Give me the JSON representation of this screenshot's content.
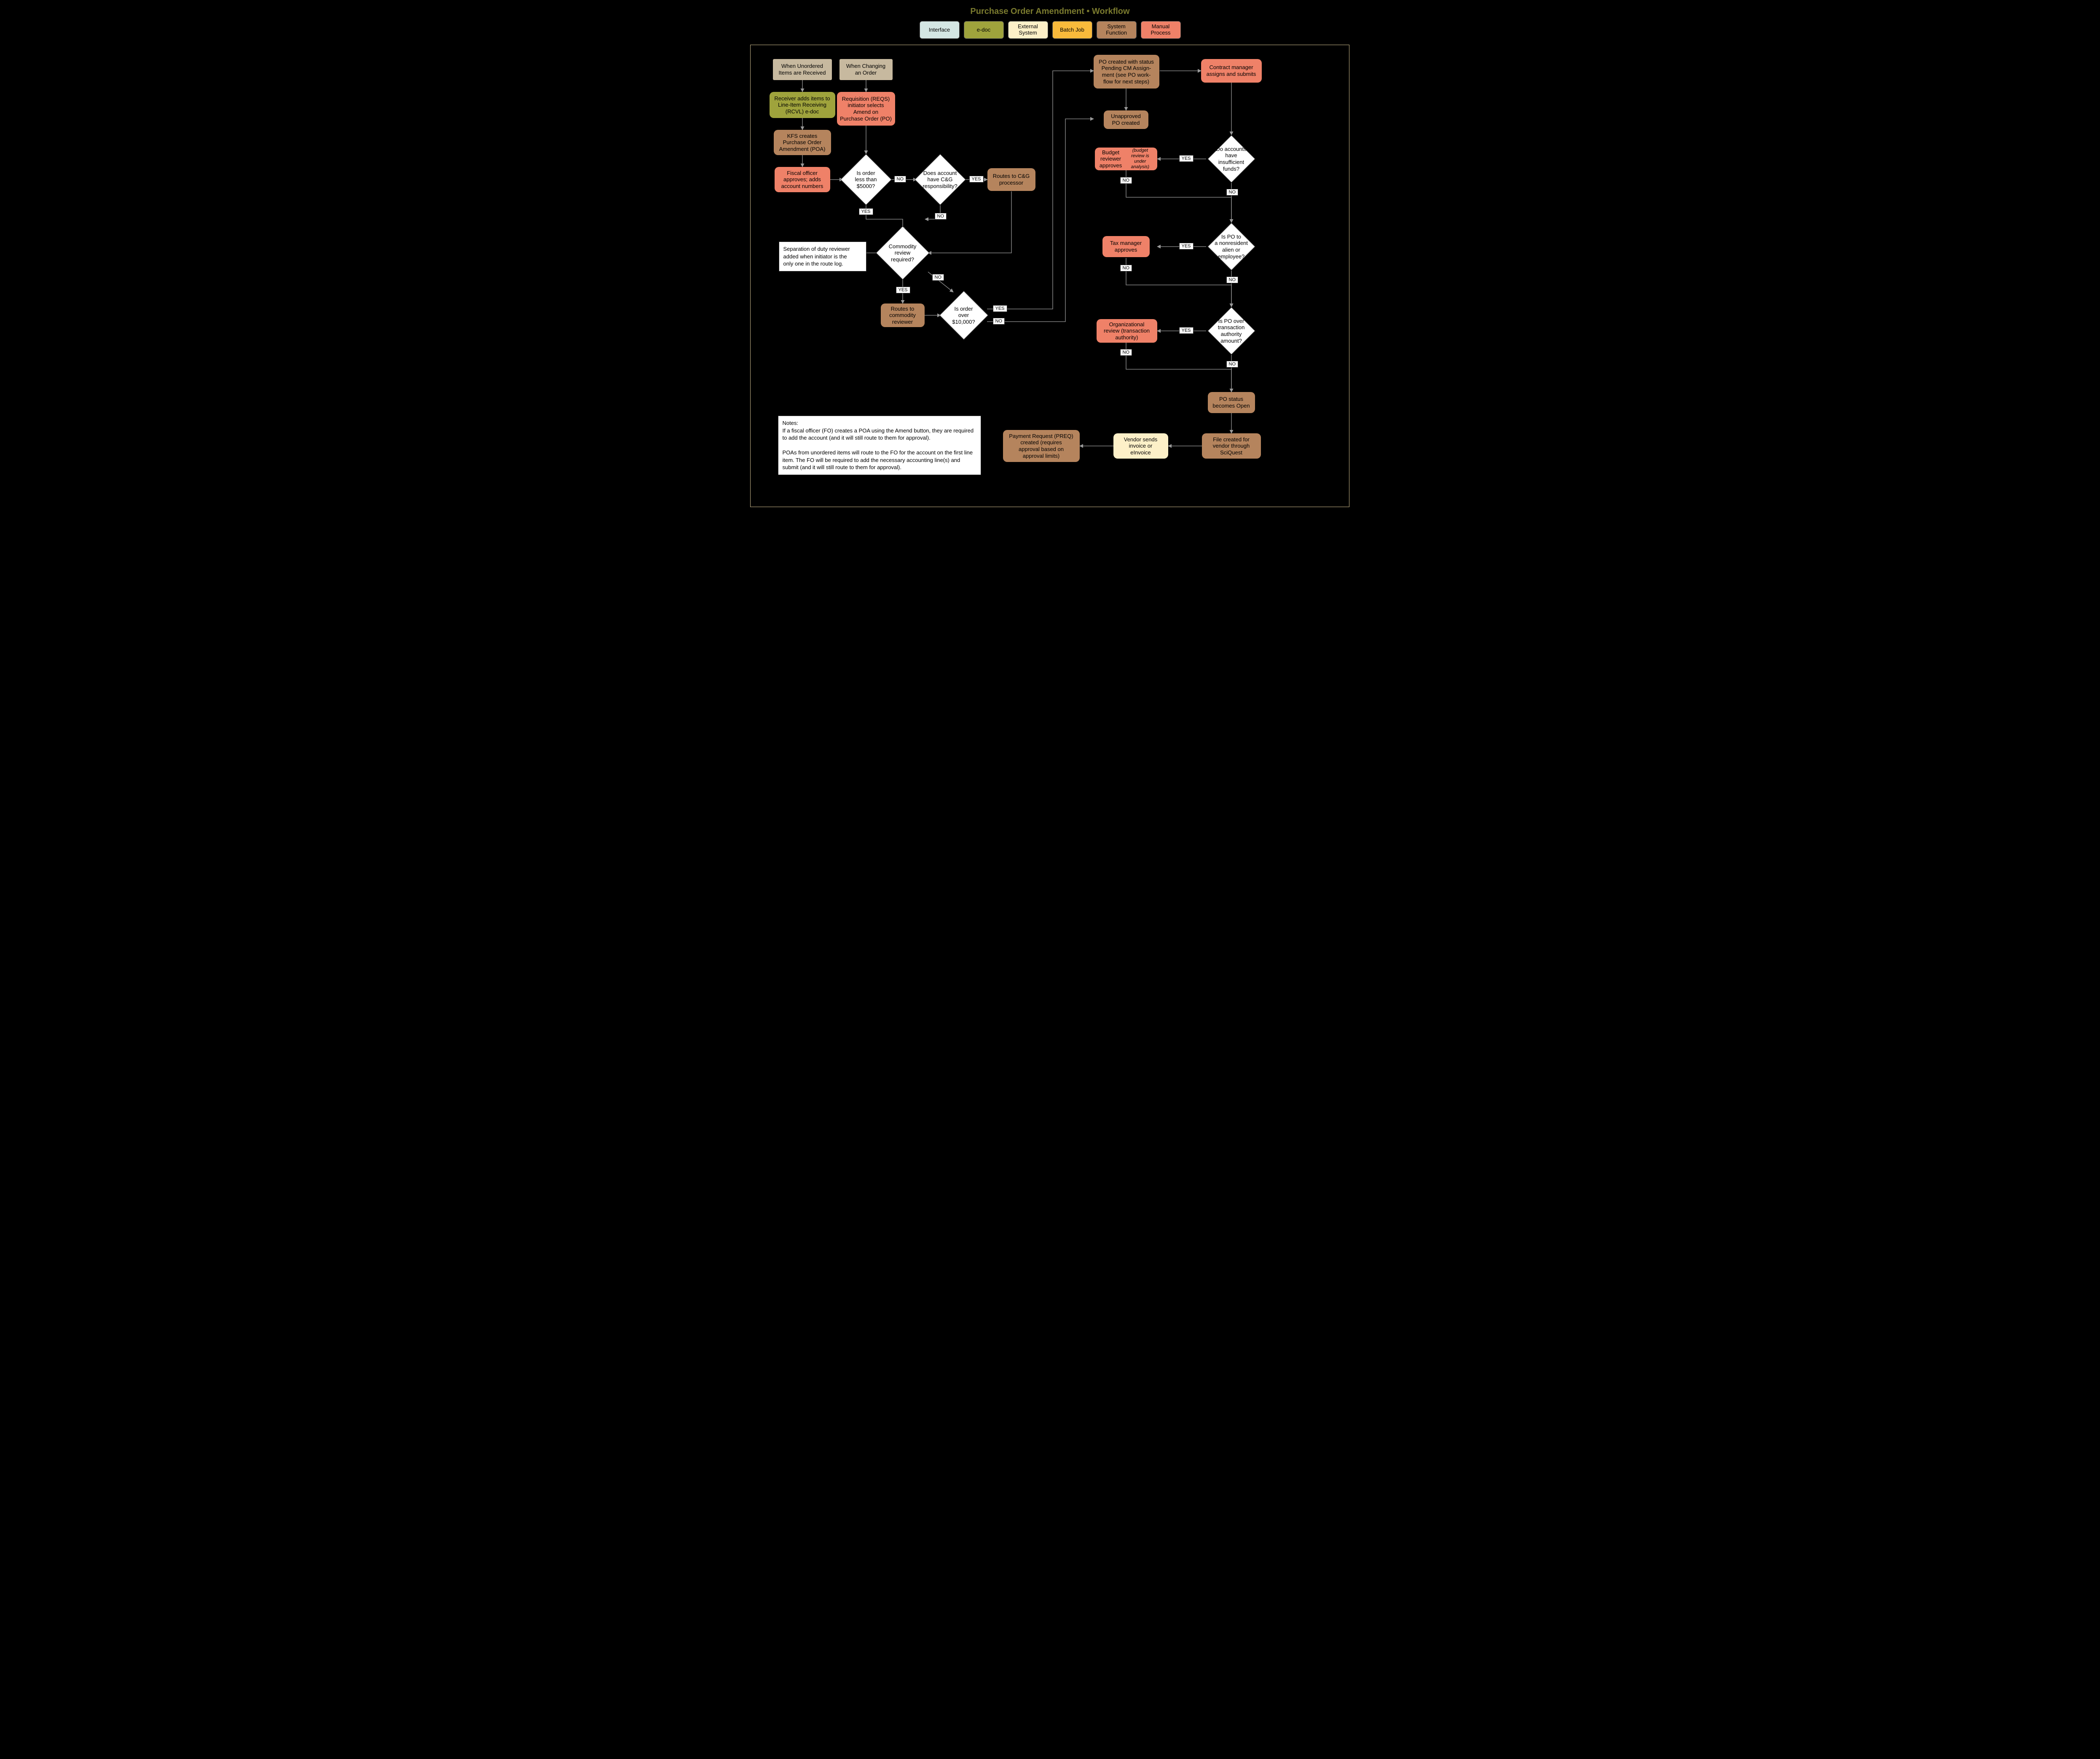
{
  "title": "Purchase Order Amendment • Workflow",
  "colors": {
    "interface": "#d4e6e3",
    "edoc": "#9fa33c",
    "external": "#fdf0c8",
    "batch": "#f9ba3b",
    "sysfunc": "#b5845d",
    "manual": "#ef8168",
    "startEnd": "#c7b99f",
    "white": "#ffffff",
    "titleColor": "#7a7a2e"
  },
  "legend": [
    {
      "label": "Interface",
      "color": "#d4e6e3"
    },
    {
      "label": "e-doc",
      "color": "#9fa33c"
    },
    {
      "label": "External\nSystem",
      "color": "#fdf0c8"
    },
    {
      "label": "Batch Job",
      "color": "#f9ba3b"
    },
    {
      "label": "System\nFunction",
      "color": "#b5845d"
    },
    {
      "label": "Manual\nProcess",
      "color": "#ef8168"
    }
  ],
  "nodes": {
    "start1": {
      "text": "When Unordered\nItems are Received"
    },
    "start2": {
      "text": "When Changing\nan Order"
    },
    "rcvl": {
      "text": "Receiver adds items to\nLine-Item Receiving\n(RCVL) e-doc"
    },
    "reqs": {
      "text": "Requisition (REQS)\ninitiator selects\nAmend on\nPurchase Order (PO)"
    },
    "kfsPoa": {
      "text": "KFS creates\nPurchase Order\nAmendment (POA)"
    },
    "fiscal": {
      "text": "Fiscal officer\napproves; adds\naccount numbers"
    },
    "d5000": {
      "text": "Is order\nless than\n$5000?"
    },
    "dCG": {
      "text": "Does account\nhave C&G\nresponsibility?"
    },
    "cgProc": {
      "text": "Routes to C&G\nprocessor"
    },
    "dComm": {
      "text": "Commodity\nreview required?"
    },
    "sepDuty": {
      "text": "Separation of duty reviewer\nadded when initiator is the\nonly one in the route log."
    },
    "commRev": {
      "text": "Routes to\ncommodity\nreviewer"
    },
    "d10k": {
      "text": "Is order\nover $10,000?"
    },
    "poPending": {
      "text": "PO created with status\nPending CM Assign-\nment (see PO work-\nflow for next steps)"
    },
    "cmAssign": {
      "text": "Contract manager\nassigns and submits"
    },
    "unappPo": {
      "text": "Unapproved\nPO created"
    },
    "dFunds": {
      "text": "Do accounts\nhave insufficient\nfunds?"
    },
    "budget": {
      "text": "Budget reviewer approves",
      "italic": "(budget review is under analysis)"
    },
    "dNRA": {
      "text": "Is PO to\na nonresident\nalien or\nemployee?"
    },
    "taxMgr": {
      "text": "Tax manager\napproves"
    },
    "dAuth": {
      "text": "Is PO over\ntransaction\nauthority\namount?"
    },
    "orgRev": {
      "text": "Organizational\nreview (transaction\nauthority)"
    },
    "poOpen": {
      "text": "PO status\nbecomes Open"
    },
    "sciquest": {
      "text": "File created for\nvendor through\nSciQuest"
    },
    "vendor": {
      "text": "Vendor sends\ninvoice or\neInvoice"
    },
    "preq": {
      "text": "Payment Request (PREQ)\ncreated (requires\napproval based on\napproval limits)"
    }
  },
  "edgeLabels": {
    "d5000_no": "NO",
    "d5000_yes": "YES",
    "dCG_yes": "YES",
    "dCG_no": "NO",
    "dComm_yes": "YES",
    "dComm_no": "NO",
    "d10k_yes": "YES",
    "d10k_no": "NO",
    "dFunds_yes": "YES",
    "dFunds_no": "NO",
    "budget_no": "NO",
    "dNRA_yes": "YES",
    "dNRA_no": "NO",
    "tax_no": "NO",
    "dAuth_yes": "YES",
    "dAuth_no": "NO",
    "org_no": "NO"
  },
  "notesHeading": "Notes:",
  "notes1": "If a fiscal officer (FO) creates a POA using the Amend button, they are required to add the account (and it will still route to them for approval).",
  "notes2": "POAs from unordered items will route to the FO for the account on the first line item. The FO will be required to add the necessary accounting line(s) and submit (and it will still route to them for approval)."
}
